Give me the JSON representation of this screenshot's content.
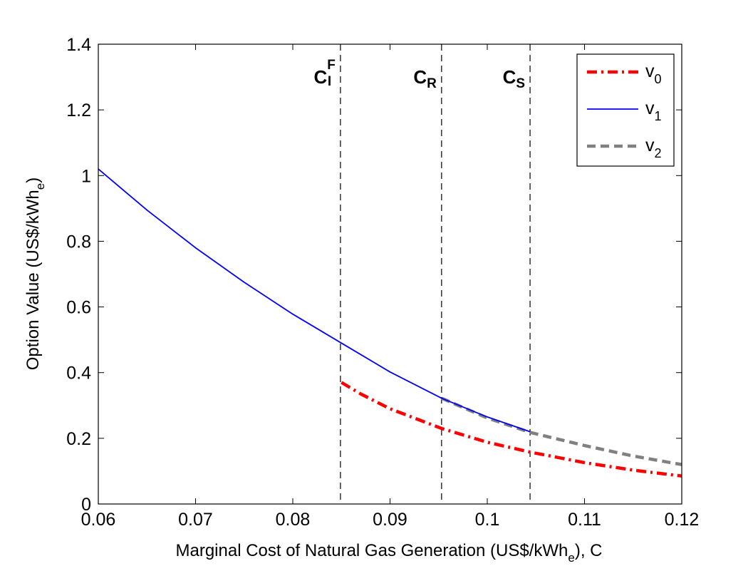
{
  "chart_data": {
    "type": "line",
    "title": "",
    "xlabel": {
      "main": "Marginal Cost of Natural Gas Generation (US$/kWh",
      "sub": "e",
      "tail": "), C"
    },
    "ylabel": {
      "main": "Option Value (US$/kWh",
      "sub": "e",
      "tail": ")"
    },
    "xlim": [
      0.06,
      0.12
    ],
    "ylim": [
      0,
      1.4
    ],
    "xticks": [
      0.06,
      0.07,
      0.08,
      0.09,
      0.1,
      0.11,
      0.12
    ],
    "xtick_labels": [
      "0.06",
      "0.07",
      "0.08",
      "0.09",
      "0.1",
      "0.11",
      "0.12"
    ],
    "yticks": [
      0,
      0.2,
      0.4,
      0.6,
      0.8,
      1,
      1.2,
      1.4
    ],
    "ytick_labels": [
      "0",
      "0.2",
      "0.4",
      "0.6",
      "0.8",
      "1",
      "1.2",
      "1.4"
    ],
    "grid": false,
    "legend_position": "top-right",
    "thresholds": [
      {
        "x": 0.0849,
        "label": "C",
        "sub": "I",
        "sup": "F"
      },
      {
        "x": 0.0953,
        "label": "C",
        "sub": "R",
        "sup": ""
      },
      {
        "x": 0.1044,
        "label": "C",
        "sub": "S",
        "sup": ""
      }
    ],
    "series": [
      {
        "name": "v",
        "name_sub": "0",
        "color": "#ff0000",
        "style": "dashdot",
        "x": [
          0.085,
          0.087,
          0.09,
          0.0953,
          0.1,
          0.1044,
          0.11,
          0.115,
          0.12
        ],
        "y": [
          0.37,
          0.335,
          0.29,
          0.23,
          0.188,
          0.158,
          0.126,
          0.103,
          0.085
        ]
      },
      {
        "name": "v",
        "name_sub": "1",
        "color": "#0000ff",
        "style": "solid",
        "x": [
          0.06,
          0.065,
          0.07,
          0.075,
          0.08,
          0.085,
          0.09,
          0.0953,
          0.1,
          0.1044
        ],
        "y": [
          1.02,
          0.895,
          0.78,
          0.675,
          0.578,
          0.49,
          0.402,
          0.322,
          0.265,
          0.22
        ]
      },
      {
        "name": "v",
        "name_sub": "2",
        "color": "#808080",
        "style": "dashed",
        "x": [
          0.0953,
          0.1,
          0.1044,
          0.11,
          0.115,
          0.12
        ],
        "y": [
          0.322,
          0.262,
          0.218,
          0.178,
          0.146,
          0.12
        ]
      }
    ]
  }
}
